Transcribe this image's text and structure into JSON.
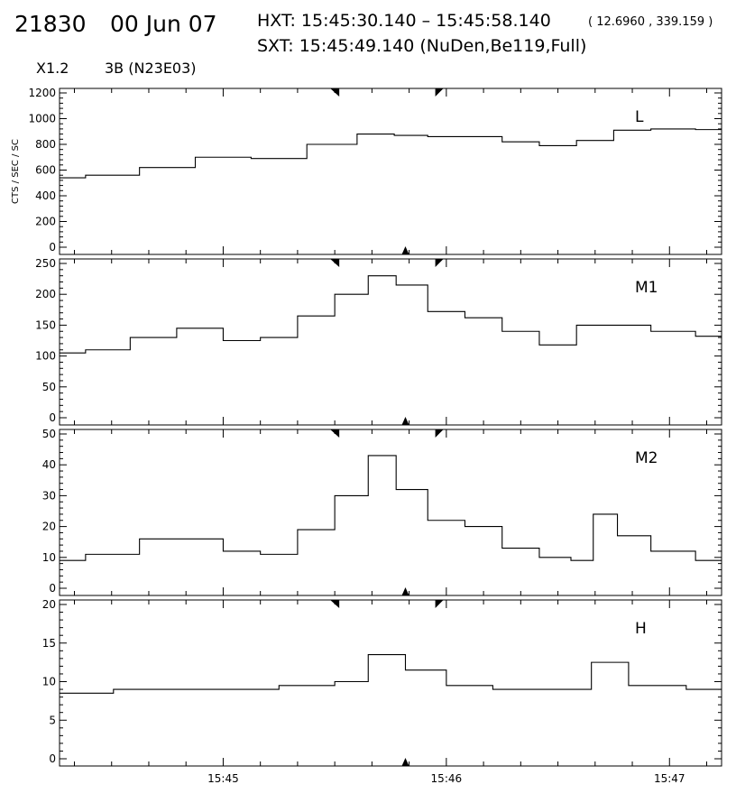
{
  "header": {
    "event_id": "21830",
    "date": "00 Jun 07",
    "hxt": "HXT: 15:45:30.140 – 15:45:58.140",
    "hxt_coords": "( 12.6960 , 339.159 )",
    "sxt": "SXT: 15:45:49.140 (NuDen,Be119,Full)",
    "goes_class": "X1.2",
    "flare_class": "3B (N23E03)"
  },
  "chart_data": [
    {
      "type": "line",
      "panel_label": "L",
      "ylabel": "CTS / SEC / SC",
      "ylim": [
        0,
        1200
      ],
      "yticks": [
        0,
        200,
        400,
        600,
        800,
        1000,
        1200
      ],
      "xlim": [
        "15:44:16",
        "15:47:14"
      ],
      "xticks": [
        "15:45",
        "15:46",
        "15:47"
      ],
      "markers_top": [
        "15:45:30",
        "15:45:58"
      ],
      "marker_bottom": "15:45:49",
      "x": [
        "15:44:16",
        "15:44:30",
        "15:44:45",
        "15:45:00",
        "15:45:15",
        "15:45:30",
        "15:45:42",
        "15:45:50",
        "15:46:00",
        "15:46:10",
        "15:46:20",
        "15:46:30",
        "15:46:40",
        "15:46:50",
        "15:47:00",
        "15:47:14"
      ],
      "values": [
        540,
        560,
        620,
        700,
        690,
        800,
        880,
        870,
        860,
        860,
        820,
        790,
        830,
        910,
        920,
        915
      ]
    },
    {
      "type": "line",
      "panel_label": "M1",
      "ylim": [
        0,
        250
      ],
      "yticks": [
        0,
        50,
        100,
        150,
        200,
        250
      ],
      "xlim": [
        "15:44:16",
        "15:47:14"
      ],
      "xticks": [
        "15:45",
        "15:46",
        "15:47"
      ],
      "markers_top": [
        "15:45:30",
        "15:45:58"
      ],
      "marker_bottom": "15:45:49",
      "x": [
        "15:44:16",
        "15:44:30",
        "15:44:40",
        "15:44:55",
        "15:45:05",
        "15:45:15",
        "15:45:25",
        "15:45:35",
        "15:45:43",
        "15:45:50",
        "15:46:00",
        "15:46:10",
        "15:46:20",
        "15:46:30",
        "15:46:40",
        "15:46:50",
        "15:47:00",
        "15:47:14"
      ],
      "values": [
        105,
        110,
        130,
        145,
        125,
        130,
        165,
        200,
        230,
        215,
        172,
        162,
        140,
        118,
        150,
        150,
        140,
        132
      ]
    },
    {
      "type": "line",
      "panel_label": "M2",
      "ylim": [
        0,
        50
      ],
      "yticks": [
        0,
        10,
        20,
        30,
        40,
        50
      ],
      "xlim": [
        "15:44:16",
        "15:47:14"
      ],
      "xticks": [
        "15:45",
        "15:46",
        "15:47"
      ],
      "markers_top": [
        "15:45:30",
        "15:45:58"
      ],
      "marker_bottom": "15:45:49",
      "x": [
        "15:44:16",
        "15:44:30",
        "15:44:45",
        "15:44:55",
        "15:45:05",
        "15:45:15",
        "15:45:25",
        "15:45:35",
        "15:45:43",
        "15:45:50",
        "15:46:00",
        "15:46:10",
        "15:46:20",
        "15:46:30",
        "15:46:37",
        "15:46:42",
        "15:46:50",
        "15:47:00",
        "15:47:14"
      ],
      "values": [
        9,
        11,
        16,
        16,
        12,
        11,
        19,
        30,
        43,
        32,
        22,
        20,
        13,
        10,
        9,
        24,
        17,
        12,
        9
      ]
    },
    {
      "type": "line",
      "panel_label": "H",
      "ylim": [
        0,
        20
      ],
      "yticks": [
        0,
        5,
        10,
        15,
        20
      ],
      "xlim": [
        "15:44:16",
        "15:47:14"
      ],
      "xticks": [
        "15:45",
        "15:46",
        "15:47"
      ],
      "markers_top": [
        "15:45:30",
        "15:45:58"
      ],
      "marker_bottom": "15:45:49",
      "x": [
        "15:44:16",
        "15:44:45",
        "15:45:05",
        "15:45:25",
        "15:45:35",
        "15:45:43",
        "15:45:55",
        "15:46:05",
        "15:46:20",
        "15:46:35",
        "15:46:43",
        "15:46:55",
        "15:47:14"
      ],
      "values": [
        8.5,
        9,
        9,
        9.5,
        10,
        13.5,
        11.5,
        9.5,
        9,
        9,
        12.5,
        9.5,
        9
      ]
    }
  ]
}
